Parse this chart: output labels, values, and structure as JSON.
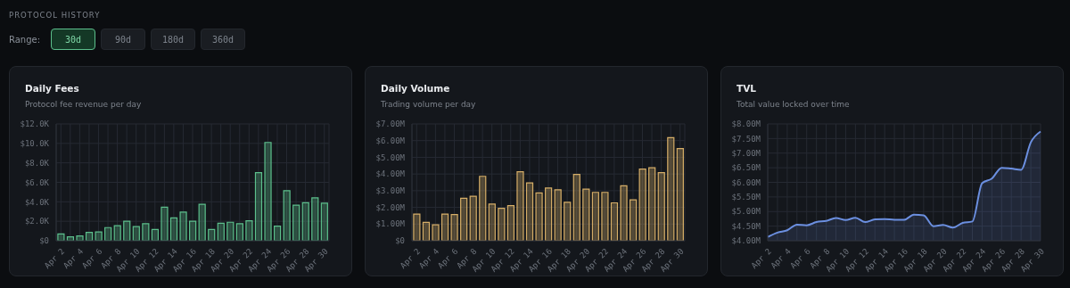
{
  "chart_data": [
    {
      "type": "other",
      "title": "PROTOCOL HISTORY",
      "annotations": [
        "Range:",
        "30d",
        "90d",
        "180d",
        "360d"
      ]
    },
    {
      "type": "bar",
      "title": "Daily Fees",
      "subtitle": "Protocol fee revenue per day",
      "categories": [
        "Apr 2",
        null,
        "Apr 4",
        null,
        "Apr 6",
        null,
        "Apr 8",
        null,
        "Apr 10",
        null,
        "Apr 12",
        null,
        "Apr 14",
        null,
        "Apr 16",
        null,
        "Apr 18",
        null,
        "Apr 20",
        null,
        "Apr 22",
        null,
        "Apr 24",
        null,
        "Apr 26",
        null,
        "Apr 28",
        null,
        "Apr 30"
      ],
      "series": [
        {
          "color": "#5cbf8c",
          "values": [
            0.7,
            0.4,
            0.5,
            0.85,
            0.9,
            1.35,
            1.55,
            2.0,
            1.45,
            1.75,
            1.15,
            3.45,
            2.35,
            2.95,
            2.0,
            3.75,
            1.15,
            1.8,
            1.9,
            1.75,
            2.05,
            7.0,
            10.1,
            1.5,
            5.15,
            3.65,
            3.9,
            4.4,
            3.85
          ]
        }
      ],
      "ylim": [
        0,
        12
      ],
      "yticks": [
        {
          "value": 0,
          "label": "$0"
        },
        {
          "value": 2,
          "label": "$2.0K"
        },
        {
          "value": 4,
          "label": "$4.0K"
        },
        {
          "value": 6,
          "label": "$6.0K"
        },
        {
          "value": 8,
          "label": "$8.0K"
        },
        {
          "value": 10,
          "label": "$10.0K"
        },
        {
          "value": 12,
          "label": "$12.0K"
        }
      ],
      "grid": true
    },
    {
      "type": "bar",
      "title": "Daily Volume",
      "subtitle": "Trading volume per day",
      "categories": [
        "Apr 2",
        null,
        "Apr 4",
        null,
        "Apr 6",
        null,
        "Apr 8",
        null,
        "Apr 10",
        null,
        "Apr 12",
        null,
        "Apr 14",
        null,
        "Apr 16",
        null,
        "Apr 18",
        null,
        "Apr 20",
        null,
        "Apr 22",
        null,
        "Apr 24",
        null,
        "Apr 26",
        null,
        "Apr 28",
        null,
        "Apr 30"
      ],
      "series": [
        {
          "color": "#d6ae68",
          "values": [
            1.6,
            1.1,
            0.95,
            1.6,
            1.57,
            2.55,
            2.67,
            3.86,
            2.2,
            1.94,
            2.1,
            4.13,
            3.47,
            2.87,
            3.16,
            3.05,
            2.3,
            3.97,
            3.09,
            2.9,
            2.9,
            2.27,
            3.29,
            2.45,
            4.3,
            4.37,
            4.08,
            6.18,
            5.52
          ]
        }
      ],
      "ylim": [
        0,
        7
      ],
      "yticks": [
        {
          "value": 0,
          "label": "$0"
        },
        {
          "value": 1,
          "label": "$1.00M"
        },
        {
          "value": 2,
          "label": "$2.00M"
        },
        {
          "value": 3,
          "label": "$3.00M"
        },
        {
          "value": 4,
          "label": "$4.00M"
        },
        {
          "value": 5,
          "label": "$5.00M"
        },
        {
          "value": 6,
          "label": "$6.00M"
        },
        {
          "value": 7,
          "label": "$7.00M"
        }
      ],
      "grid": true
    },
    {
      "type": "area",
      "title": "TVL",
      "subtitle": "Total value locked over time",
      "categories": [
        "Apr 2",
        null,
        "Apr 4",
        null,
        "Apr 6",
        null,
        "Apr 8",
        null,
        "Apr 10",
        null,
        "Apr 12",
        null,
        "Apr 14",
        null,
        "Apr 16",
        null,
        "Apr 18",
        null,
        "Apr 20",
        null,
        "Apr 22",
        null,
        "Apr 24",
        null,
        "Apr 26",
        null,
        "Apr 28",
        null,
        "Apr 30"
      ],
      "series": [
        {
          "color": "#6b8fe0",
          "values": [
            4.13,
            4.28,
            4.36,
            4.55,
            4.53,
            4.64,
            4.68,
            4.78,
            4.71,
            4.79,
            4.64,
            4.73,
            4.74,
            4.72,
            4.72,
            4.89,
            4.87,
            4.5,
            4.54,
            4.45,
            4.61,
            4.66,
            5.97,
            6.13,
            6.5,
            6.47,
            6.43,
            7.37,
            7.74
          ]
        }
      ],
      "ylim": [
        4,
        8
      ],
      "yticks": [
        {
          "value": 4,
          "label": "$4.00M"
        },
        {
          "value": 4.5,
          "label": "$4.50M"
        },
        {
          "value": 5,
          "label": "$5.00M"
        },
        {
          "value": 5.5,
          "label": "$5.50M"
        },
        {
          "value": 6,
          "label": "$6.00M"
        },
        {
          "value": 6.5,
          "label": "$6.50M"
        },
        {
          "value": 7,
          "label": "$7.00M"
        },
        {
          "value": 7.5,
          "label": "$7.50M"
        },
        {
          "value": 8,
          "label": "$8.00M"
        }
      ],
      "grid": true
    }
  ]
}
